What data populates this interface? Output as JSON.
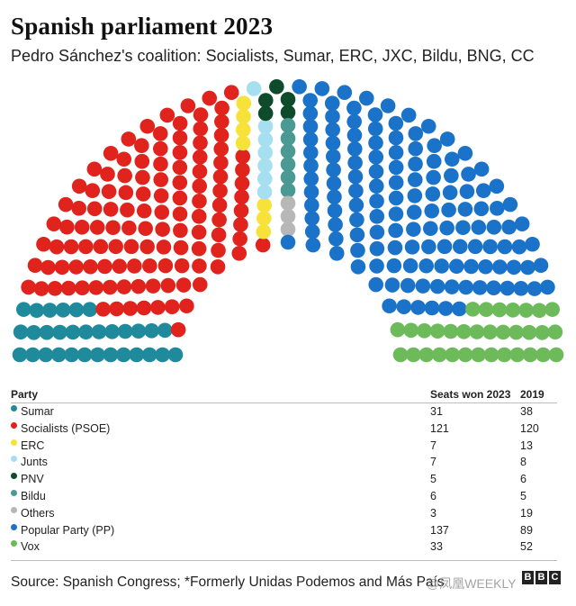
{
  "header": {
    "title": "Spanish parliament 2023",
    "subtitle": "Pedro Sánchez's coalition: Socialists, Sumar, ERC, JXC, Bildu, BNG, CC"
  },
  "table": {
    "col_party": "Party",
    "col_2023": "Seats won 2023",
    "col_2019": "2019"
  },
  "footer": {
    "source": "Source: Spanish Congress; *Formerly Unidas Podemos and Más País",
    "watermark": "@凤凰WEEKLY",
    "logo_letters": [
      "B",
      "B",
      "C"
    ]
  },
  "chart_data": {
    "type": "hemicycle",
    "total_seats": 350,
    "parties": [
      {
        "name": "Sumar",
        "seats_2023": 31,
        "seats_2019": 38,
        "color": "#1e8a9c"
      },
      {
        "name": "Socialists (PSOE)",
        "seats_2023": 121,
        "seats_2019": 120,
        "color": "#e0231c"
      },
      {
        "name": "ERC",
        "seats_2023": 7,
        "seats_2019": 13,
        "color": "#f7e23a"
      },
      {
        "name": "Junts",
        "seats_2023": 7,
        "seats_2019": 8,
        "color": "#a6dff0"
      },
      {
        "name": "PNV",
        "seats_2023": 5,
        "seats_2019": 6,
        "color": "#0e4b2b"
      },
      {
        "name": "Bildu",
        "seats_2023": 6,
        "seats_2019": 5,
        "color": "#4a9a93"
      },
      {
        "name": "Others",
        "seats_2023": 3,
        "seats_2019": 19,
        "color": "#b7b7b7"
      },
      {
        "name": "Popular Party (PP)",
        "seats_2023": 137,
        "seats_2019": 89,
        "color": "#1a73c9"
      },
      {
        "name": "Vox",
        "seats_2023": 33,
        "seats_2019": 52,
        "color": "#6cba5a"
      }
    ]
  }
}
